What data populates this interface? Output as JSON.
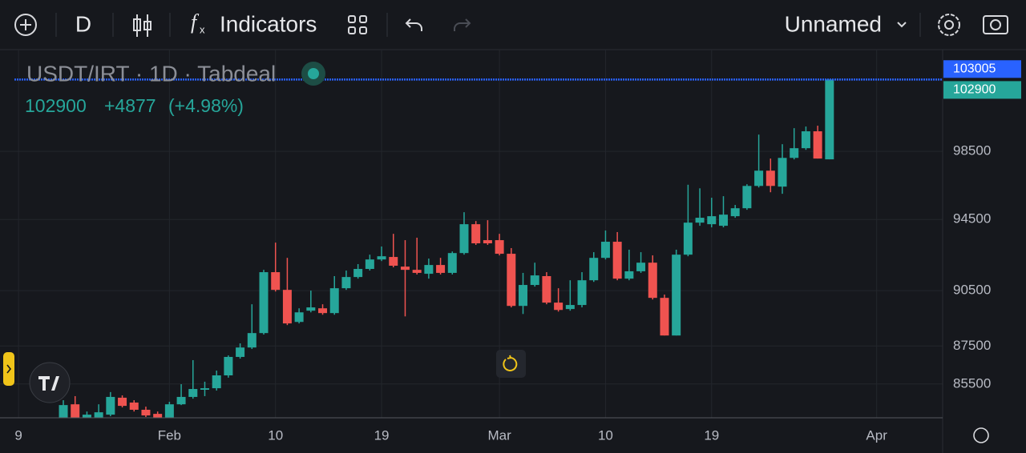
{
  "toolbar": {
    "interval": "D",
    "indicators": "Indicators",
    "layout": "Unnamed"
  },
  "chart_data": {
    "type": "candlestick",
    "title": "USDT/IRT · 1D · Tabdeal",
    "last": "102900",
    "change": "+4877",
    "change_pct": "(+4.98%)",
    "up_color": "#26a69a",
    "down_color": "#ef5350",
    "log_scale": true,
    "grid": true,
    "xlim": [
      -4.15,
      74.6
    ],
    "xticks": [
      {
        "value": -3.8,
        "label": "9"
      },
      {
        "value": 9,
        "label": "Feb"
      },
      {
        "value": 18,
        "label": "10"
      },
      {
        "value": 27,
        "label": "19"
      },
      {
        "value": 37,
        "label": "Mar"
      },
      {
        "value": 46,
        "label": "10"
      },
      {
        "value": 55,
        "label": "19"
      },
      {
        "value": 69,
        "label": "Apr"
      }
    ],
    "ylim": [
      83760,
      104790
    ],
    "yticks": [
      85500,
      87500,
      90500,
      94500,
      98500
    ],
    "price_lines": [
      {
        "value": 103005,
        "color": "#2962ff"
      },
      {
        "value": 102900,
        "color": "#26a69a",
        "line_color": "#2962ff"
      }
    ],
    "open": [
      83760,
      84450,
      83760,
      83760,
      83920,
      84790,
      84540,
      84170,
      83960,
      83760,
      84450,
      84830,
      85200,
      85280,
      85950,
      86920,
      87420,
      88190,
      91520,
      90540,
      88790,
      89400,
      89530,
      89270,
      90630,
      91250,
      91700,
      92230,
      92370,
      91830,
      91650,
      91430,
      91920,
      91480,
      92590,
      94230,
      93320,
      93320,
      92550,
      89660,
      90810,
      91300,
      89840,
      89490,
      89710,
      91070,
      92320,
      93230,
      91160,
      91570,
      92050,
      90100,
      88060,
      92500,
      94320,
      94230,
      94140,
      94690,
      95150,
      96450,
      97350,
      96410,
      98110,
      98690,
      99710,
      98023
    ],
    "high": [
      84660,
      84870,
      84080,
      84450,
      85080,
      84910,
      84660,
      84330,
      84080,
      84580,
      85490,
      86750,
      85620,
      86200,
      87000,
      87640,
      89750,
      91650,
      93180,
      92320,
      89530,
      90500,
      89750,
      91300,
      91610,
      91970,
      92500,
      92960,
      93680,
      93320,
      93460,
      92280,
      92320,
      92680,
      94920,
      94410,
      94460,
      93680,
      92870,
      91480,
      92050,
      91520,
      90630,
      91070,
      91520,
      92640,
      93870,
      93780,
      92780,
      92640,
      92460,
      90280,
      92780,
      96520,
      96310,
      95760,
      95850,
      95340,
      96550,
      99510,
      98070,
      98930,
      99900,
      100000,
      100050,
      102900
    ],
    "low": [
      83760,
      83760,
      83760,
      83760,
      83840,
      84290,
      84080,
      83800,
      83760,
      83760,
      84410,
      84740,
      84870,
      85160,
      85830,
      86830,
      87340,
      88110,
      90450,
      88620,
      88710,
      89310,
      89180,
      89180,
      90540,
      91160,
      91610,
      92140,
      91790,
      89090,
      91390,
      91160,
      91390,
      91390,
      92500,
      93050,
      93050,
      92460,
      89580,
      89220,
      90720,
      89750,
      89350,
      89400,
      89580,
      90980,
      92230,
      91070,
      91070,
      91480,
      90010,
      88060,
      88060,
      92410,
      94140,
      94050,
      94050,
      94600,
      95060,
      96360,
      96080,
      95990,
      98020,
      98590,
      98070,
      98023
    ],
    "close": [
      84410,
      83760,
      83920,
      84040,
      84830,
      84370,
      84170,
      83880,
      83760,
      84450,
      84830,
      85240,
      85280,
      85950,
      86920,
      87420,
      88190,
      91520,
      90540,
      88710,
      89310,
      89580,
      89270,
      90630,
      91250,
      91700,
      92230,
      92410,
      91880,
      91650,
      91480,
      91920,
      91480,
      92590,
      94230,
      93140,
      93140,
      92550,
      89660,
      90810,
      91340,
      89840,
      89440,
      89710,
      91070,
      92320,
      93230,
      91160,
      91570,
      92050,
      90100,
      88060,
      92500,
      94320,
      94600,
      94690,
      94780,
      95150,
      96450,
      97350,
      96450,
      98110,
      98690,
      99710,
      98070,
      102900
    ]
  }
}
